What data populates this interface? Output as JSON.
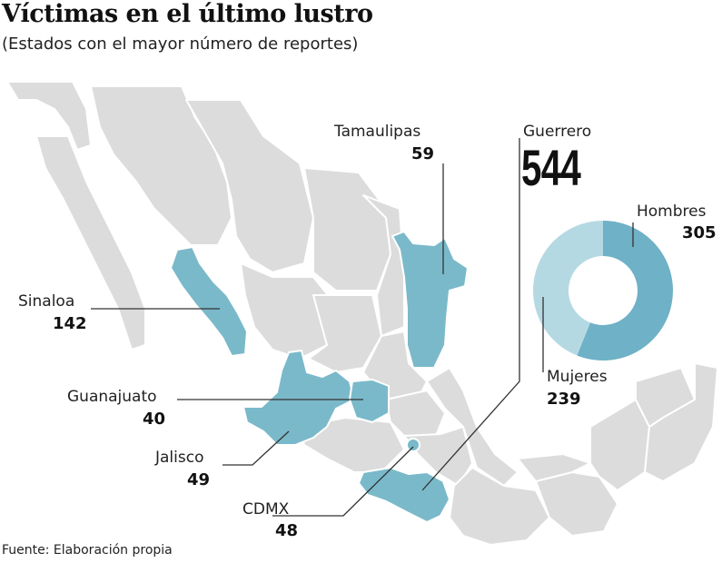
{
  "title": "Víctimas en el último lustro",
  "subtitle": "(Estados con el mayor número de reportes)",
  "colors": {
    "land": "#dcdcdc",
    "highlight": "#7ab9ca",
    "hombres": "#6fb1c6",
    "mujeres": "#b5d9e3",
    "leader": "#333333"
  },
  "states": [
    {
      "name": "Tamaulipas",
      "value": "59"
    },
    {
      "name": "Sinaloa",
      "value": "142"
    },
    {
      "name": "Guanajuato",
      "value": "40"
    },
    {
      "name": "Jalisco",
      "value": "49"
    },
    {
      "name": "CDMX",
      "value": "48"
    }
  ],
  "guerrero": {
    "name": "Guerrero",
    "value": "544"
  },
  "chart_data": {
    "type": "pie",
    "donut": true,
    "categories": [
      "Hombres",
      "Mujeres"
    ],
    "values": [
      305,
      239
    ],
    "labels": [
      {
        "name": "Hombres",
        "value": "305"
      },
      {
        "name": "Mujeres",
        "value": "239"
      }
    ]
  },
  "source": "Fuente: Elaboración propia"
}
